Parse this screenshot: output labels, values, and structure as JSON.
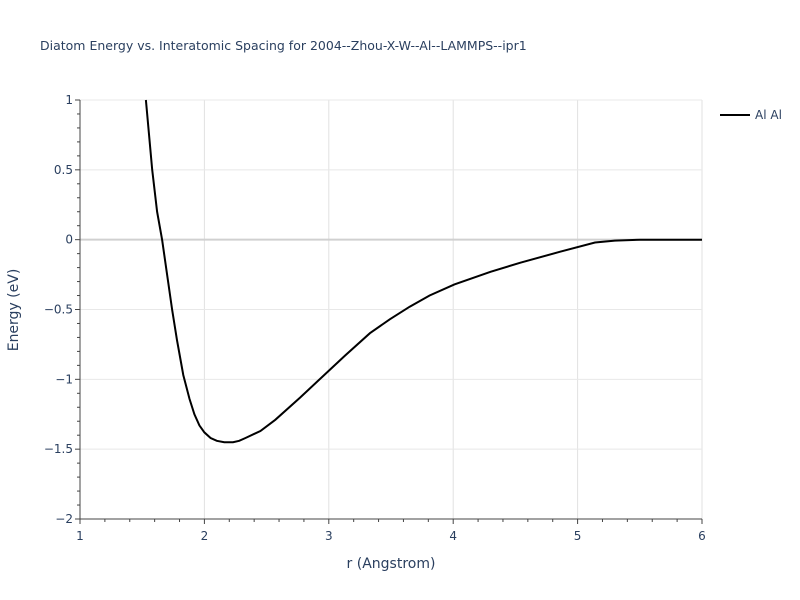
{
  "chart_data": {
    "type": "line",
    "title": "Diatom Energy vs. Interatomic Spacing for 2004--Zhou-X-W--Al--LAMMPS--ipr1",
    "xlabel": "r (Angstrom)",
    "ylabel": "Energy (eV)",
    "xlim": [
      1,
      6
    ],
    "ylim": [
      -2,
      1
    ],
    "xticks": [
      1,
      2,
      3,
      4,
      5,
      6
    ],
    "yticks": [
      1,
      0.5,
      0,
      -0.5,
      -1,
      -1.5,
      -2
    ],
    "xtick_labels": [
      "1",
      "2",
      "3",
      "4",
      "5",
      "6"
    ],
    "ytick_labels": [
      "1",
      "0.5",
      "0",
      "−0.5",
      "−1",
      "−1.5",
      "−2"
    ],
    "grid": true,
    "legend_position": "top-right",
    "series": [
      {
        "name": "Al Al",
        "color": "#000000",
        "x": [
          1.53,
          1.58,
          1.62,
          1.66,
          1.7,
          1.74,
          1.78,
          1.83,
          1.88,
          1.92,
          1.96,
          2.0,
          2.05,
          2.1,
          2.16,
          2.23,
          2.28,
          2.33,
          2.45,
          2.57,
          2.77,
          3.01,
          3.13,
          3.33,
          3.49,
          3.65,
          3.81,
          4.01,
          4.3,
          4.54,
          4.86,
          5.14,
          5.3,
          5.5,
          5.75,
          6.0
        ],
        "y": [
          1.0,
          0.5,
          0.2,
          0.0,
          -0.25,
          -0.5,
          -0.72,
          -0.97,
          -1.14,
          -1.25,
          -1.33,
          -1.38,
          -1.42,
          -1.44,
          -1.45,
          -1.45,
          -1.44,
          -1.42,
          -1.37,
          -1.29,
          -1.13,
          -0.93,
          -0.83,
          -0.67,
          -0.57,
          -0.48,
          -0.4,
          -0.32,
          -0.23,
          -0.165,
          -0.086,
          -0.02,
          -0.007,
          0,
          0,
          0
        ]
      }
    ]
  }
}
